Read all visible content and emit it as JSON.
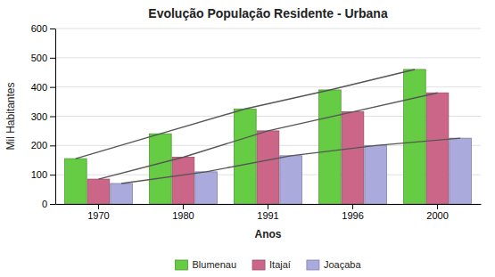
{
  "chart_data": {
    "type": "bar",
    "title": "Evolução População Residente - Urbana",
    "x_label": "Anos",
    "y_label": "Mil Habitantes",
    "categories": [
      "1970",
      "1980",
      "1991",
      "1996",
      "2000"
    ],
    "series": [
      {
        "name": "Blumenau",
        "color": "#66cc44",
        "values": [
          155,
          240,
          325,
          390,
          460
        ]
      },
      {
        "name": "Itajaí",
        "color": "#cc6688",
        "values": [
          85,
          160,
          250,
          315,
          380
        ]
      },
      {
        "name": "Joaçaba",
        "color": "#aaaadd",
        "values": [
          70,
          110,
          165,
          200,
          225
        ]
      },
      {
        "type": "line",
        "color": "#555555",
        "values": [
          155,
          240,
          325,
          390,
          460
        ]
      },
      {
        "type": "line",
        "color": "#555555",
        "values": [
          85,
          160,
          250,
          315,
          380
        ]
      },
      {
        "type": "line",
        "color": "#555555",
        "values": [
          70,
          110,
          165,
          200,
          225
        ]
      }
    ],
    "ylim": [
      0,
      600
    ],
    "yticks": [
      0,
      100,
      200,
      300,
      400,
      500,
      600
    ],
    "grid": true,
    "legend": "bottom"
  }
}
